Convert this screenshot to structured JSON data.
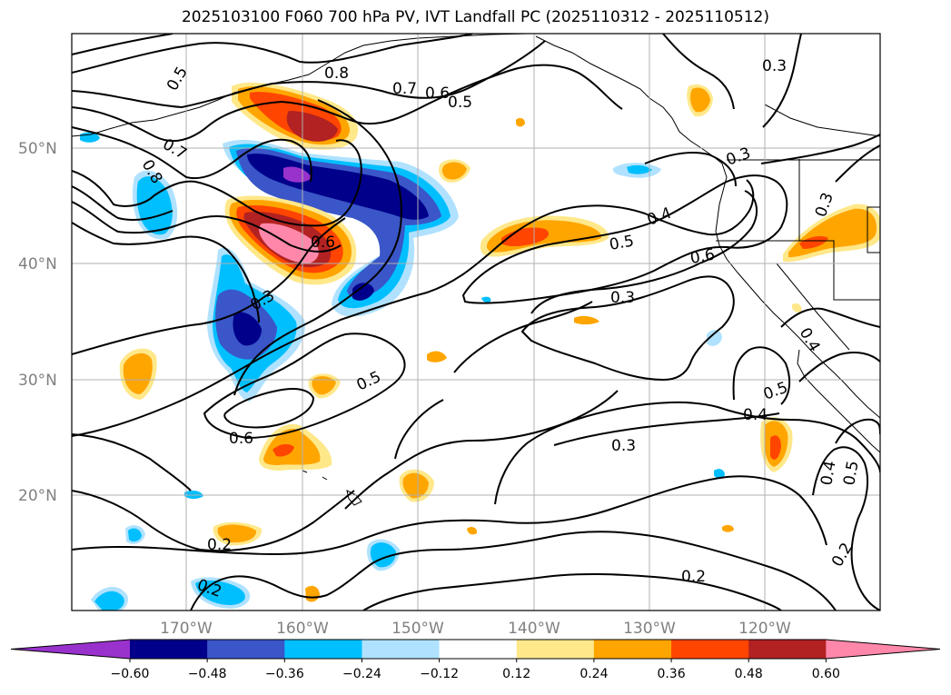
{
  "title": "2025103100 F060 700 hPa PV, IVT Landfall PC (2025110312 - 2025110512)",
  "lat_labels": [
    "50°N",
    "40°N",
    "30°N",
    "20°N"
  ],
  "lon_labels": [
    "170°W",
    "160°W",
    "150°W",
    "140°W",
    "130°W",
    "120°W"
  ],
  "colorbar": {
    "tick_labels": [
      "−0.60",
      "−0.48",
      "−0.36",
      "−0.24",
      "−0.12",
      "0.12",
      "0.24",
      "0.36",
      "0.48",
      "0.60"
    ],
    "colors": [
      "#9932cc",
      "#00008b",
      "#3a56c8",
      "#00bfff",
      "#b0e2ff",
      "#ffffff",
      "#ffe88a",
      "#ffa500",
      "#ff4500",
      "#b22222",
      "#ff88aa"
    ]
  },
  "contour_labels": [
    {
      "text": "0.5"
    },
    {
      "text": "0.8"
    },
    {
      "text": "0.7"
    },
    {
      "text": "0.6"
    },
    {
      "text": "0.5"
    },
    {
      "text": "0.3"
    },
    {
      "text": "0.7"
    },
    {
      "text": "0.8"
    },
    {
      "text": "0.6"
    },
    {
      "text": "0.3"
    },
    {
      "text": "0.3"
    },
    {
      "text": "0.4"
    },
    {
      "text": "0.5"
    },
    {
      "text": "0.6"
    },
    {
      "text": "0.3"
    },
    {
      "text": "0.3"
    },
    {
      "text": "0.5"
    },
    {
      "text": "0.6"
    },
    {
      "text": "0.4"
    },
    {
      "text": "0.5"
    },
    {
      "text": "0.4"
    },
    {
      "text": "0.3"
    },
    {
      "text": "0.4"
    },
    {
      "text": "0.5"
    },
    {
      "text": "0.2"
    },
    {
      "text": "0.2"
    },
    {
      "text": "0.2"
    },
    {
      "text": "0.2"
    }
  ]
}
